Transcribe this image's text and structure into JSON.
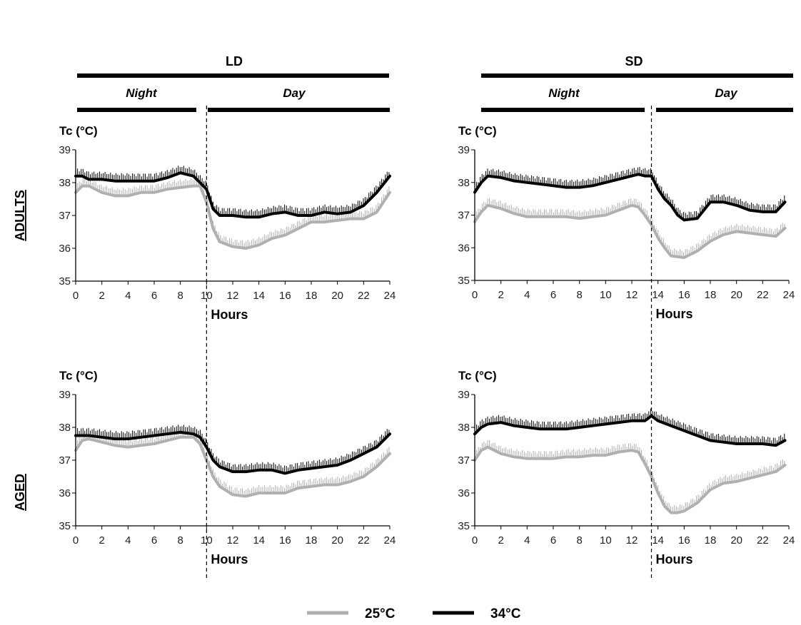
{
  "headers": {
    "ld": "LD",
    "sd": "SD",
    "night": "Night",
    "day": "Day"
  },
  "rows": {
    "adults": "ADULTS",
    "aged": "AGED"
  },
  "legend": [
    {
      "label": "25°C",
      "color": "#b0b0b0"
    },
    {
      "label": "34°C",
      "color": "#000000"
    }
  ],
  "chart_data": [
    {
      "type": "line",
      "panel": "LD adults",
      "ylabel": "Tc (°C)",
      "xlabel": "Hours",
      "xlim": [
        0,
        24
      ],
      "ylim": [
        35,
        39
      ],
      "xticks": [
        0,
        2,
        4,
        6,
        8,
        10,
        12,
        14,
        16,
        18,
        20,
        22,
        24
      ],
      "yticks": [
        35,
        36,
        37,
        38,
        39
      ],
      "lights_off_hour": 10,
      "series": [
        {
          "name": "25°C",
          "color": "#b0b0b0",
          "x": [
            0,
            0.5,
            1,
            2,
            3,
            4,
            5,
            6,
            7,
            8,
            9,
            9.5,
            10,
            10.5,
            11,
            12,
            13,
            14,
            15,
            16,
            17,
            18,
            19,
            20,
            21,
            22,
            23,
            24
          ],
          "y": [
            37.7,
            37.9,
            37.9,
            37.7,
            37.6,
            37.6,
            37.7,
            37.7,
            37.8,
            37.85,
            37.9,
            37.9,
            37.4,
            36.6,
            36.2,
            36.05,
            36.0,
            36.1,
            36.3,
            36.4,
            36.6,
            36.8,
            36.8,
            36.85,
            36.9,
            36.9,
            37.1,
            37.7
          ]
        },
        {
          "name": "34°C",
          "color": "#000000",
          "x": [
            0,
            0.5,
            1,
            2,
            3,
            4,
            5,
            6,
            7,
            8,
            9,
            9.5,
            10,
            10.5,
            11,
            12,
            13,
            14,
            15,
            16,
            17,
            18,
            19,
            20,
            21,
            22,
            23,
            24
          ],
          "y": [
            38.2,
            38.2,
            38.1,
            38.1,
            38.05,
            38.05,
            38.05,
            38.05,
            38.15,
            38.3,
            38.2,
            38.0,
            37.8,
            37.2,
            37.0,
            37.0,
            36.95,
            36.95,
            37.05,
            37.1,
            37.0,
            37.0,
            37.1,
            37.05,
            37.1,
            37.3,
            37.7,
            38.2
          ]
        }
      ]
    },
    {
      "type": "line",
      "panel": "SD adults",
      "ylabel": "Tc (°C)",
      "xlabel": "Hours",
      "xlim": [
        0,
        24
      ],
      "ylim": [
        35,
        39
      ],
      "xticks": [
        0,
        2,
        4,
        6,
        8,
        10,
        12,
        14,
        16,
        18,
        20,
        22,
        24
      ],
      "yticks": [
        35,
        36,
        37,
        38,
        39
      ],
      "lights_off_hour": 13.5,
      "series": [
        {
          "name": "25°C",
          "color": "#b0b0b0",
          "x": [
            0,
            0.5,
            1,
            2,
            3,
            4,
            5,
            6,
            7,
            8,
            9,
            10,
            11,
            12,
            12.5,
            13,
            13.5,
            14,
            14.5,
            15,
            16,
            17,
            18,
            19,
            20,
            21,
            22,
            23,
            23.7
          ],
          "y": [
            36.8,
            37.1,
            37.3,
            37.2,
            37.05,
            36.95,
            36.95,
            36.95,
            36.95,
            36.9,
            36.95,
            37.0,
            37.15,
            37.3,
            37.25,
            37.0,
            36.7,
            36.3,
            36.0,
            35.75,
            35.7,
            35.9,
            36.2,
            36.4,
            36.5,
            36.45,
            36.4,
            36.35,
            36.6
          ]
        },
        {
          "name": "34°C",
          "color": "#000000",
          "x": [
            0,
            0.5,
            1,
            2,
            3,
            4,
            5,
            6,
            7,
            8,
            9,
            10,
            11,
            12,
            12.5,
            13,
            13.5,
            14,
            14.5,
            15,
            15.5,
            16,
            17,
            18,
            19,
            20,
            21,
            22,
            23,
            23.7
          ],
          "y": [
            37.7,
            38.0,
            38.2,
            38.15,
            38.05,
            38.0,
            37.95,
            37.9,
            37.85,
            37.85,
            37.9,
            38.0,
            38.1,
            38.2,
            38.25,
            38.2,
            38.2,
            37.8,
            37.5,
            37.3,
            37.0,
            36.85,
            36.9,
            37.4,
            37.4,
            37.3,
            37.15,
            37.1,
            37.1,
            37.4
          ]
        }
      ]
    },
    {
      "type": "line",
      "panel": "LD aged",
      "ylabel": "Tc (°C)",
      "xlabel": "Hours",
      "xlim": [
        0,
        24
      ],
      "ylim": [
        35,
        39
      ],
      "xticks": [
        0,
        2,
        4,
        6,
        8,
        10,
        12,
        14,
        16,
        18,
        20,
        22,
        24
      ],
      "yticks": [
        35,
        36,
        37,
        38,
        39
      ],
      "lights_off_hour": 10,
      "series": [
        {
          "name": "25°C",
          "color": "#b0b0b0",
          "x": [
            0,
            0.5,
            1,
            2,
            3,
            4,
            5,
            6,
            7,
            8,
            9,
            9.5,
            10,
            10.5,
            11,
            12,
            13,
            14,
            15,
            16,
            17,
            18,
            19,
            20,
            21,
            22,
            23,
            24
          ],
          "y": [
            37.3,
            37.6,
            37.65,
            37.55,
            37.45,
            37.4,
            37.45,
            37.5,
            37.6,
            37.7,
            37.7,
            37.5,
            37.0,
            36.5,
            36.2,
            35.95,
            35.9,
            36.0,
            36.0,
            36.0,
            36.15,
            36.2,
            36.25,
            36.25,
            36.35,
            36.5,
            36.8,
            37.2
          ]
        },
        {
          "name": "34°C",
          "color": "#000000",
          "x": [
            0,
            0.5,
            1,
            2,
            3,
            4,
            5,
            6,
            7,
            8,
            9,
            9.5,
            10,
            10.5,
            11,
            12,
            13,
            14,
            15,
            16,
            17,
            18,
            19,
            20,
            21,
            22,
            23,
            24
          ],
          "y": [
            37.75,
            37.75,
            37.75,
            37.7,
            37.65,
            37.65,
            37.7,
            37.75,
            37.8,
            37.85,
            37.8,
            37.7,
            37.4,
            37.0,
            36.8,
            36.65,
            36.65,
            36.7,
            36.7,
            36.6,
            36.7,
            36.75,
            36.8,
            36.85,
            37.0,
            37.2,
            37.4,
            37.8
          ]
        }
      ]
    },
    {
      "type": "line",
      "panel": "SD aged",
      "ylabel": "Tc (°C)",
      "xlabel": "Hours",
      "xlim": [
        0,
        24
      ],
      "ylim": [
        35,
        39
      ],
      "xticks": [
        0,
        2,
        4,
        6,
        8,
        10,
        12,
        14,
        16,
        18,
        20,
        22,
        24
      ],
      "yticks": [
        35,
        36,
        37,
        38,
        39
      ],
      "lights_off_hour": 13.5,
      "series": [
        {
          "name": "25°C",
          "color": "#b0b0b0",
          "x": [
            0,
            0.5,
            1,
            2,
            3,
            4,
            5,
            6,
            7,
            8,
            9,
            10,
            11,
            12,
            12.5,
            13,
            13.5,
            14,
            14.5,
            15,
            15.5,
            16,
            17,
            18,
            19,
            20,
            21,
            22,
            23,
            23.7
          ],
          "y": [
            37.0,
            37.3,
            37.4,
            37.2,
            37.1,
            37.05,
            37.05,
            37.05,
            37.1,
            37.1,
            37.15,
            37.15,
            37.25,
            37.3,
            37.25,
            36.9,
            36.5,
            36.0,
            35.6,
            35.4,
            35.4,
            35.45,
            35.7,
            36.1,
            36.3,
            36.35,
            36.45,
            36.55,
            36.65,
            36.85
          ]
        },
        {
          "name": "34°C",
          "color": "#000000",
          "x": [
            0,
            0.5,
            1,
            2,
            3,
            4,
            5,
            6,
            7,
            8,
            9,
            10,
            11,
            12,
            12.5,
            13,
            13.5,
            14,
            15,
            16,
            17,
            18,
            19,
            20,
            21,
            22,
            23,
            23.7
          ],
          "y": [
            37.8,
            38.0,
            38.1,
            38.15,
            38.05,
            38.0,
            37.95,
            37.95,
            37.95,
            38.0,
            38.05,
            38.1,
            38.15,
            38.2,
            38.2,
            38.2,
            38.35,
            38.2,
            38.05,
            37.9,
            37.75,
            37.6,
            37.55,
            37.5,
            37.5,
            37.5,
            37.45,
            37.6
          ]
        }
      ]
    }
  ]
}
